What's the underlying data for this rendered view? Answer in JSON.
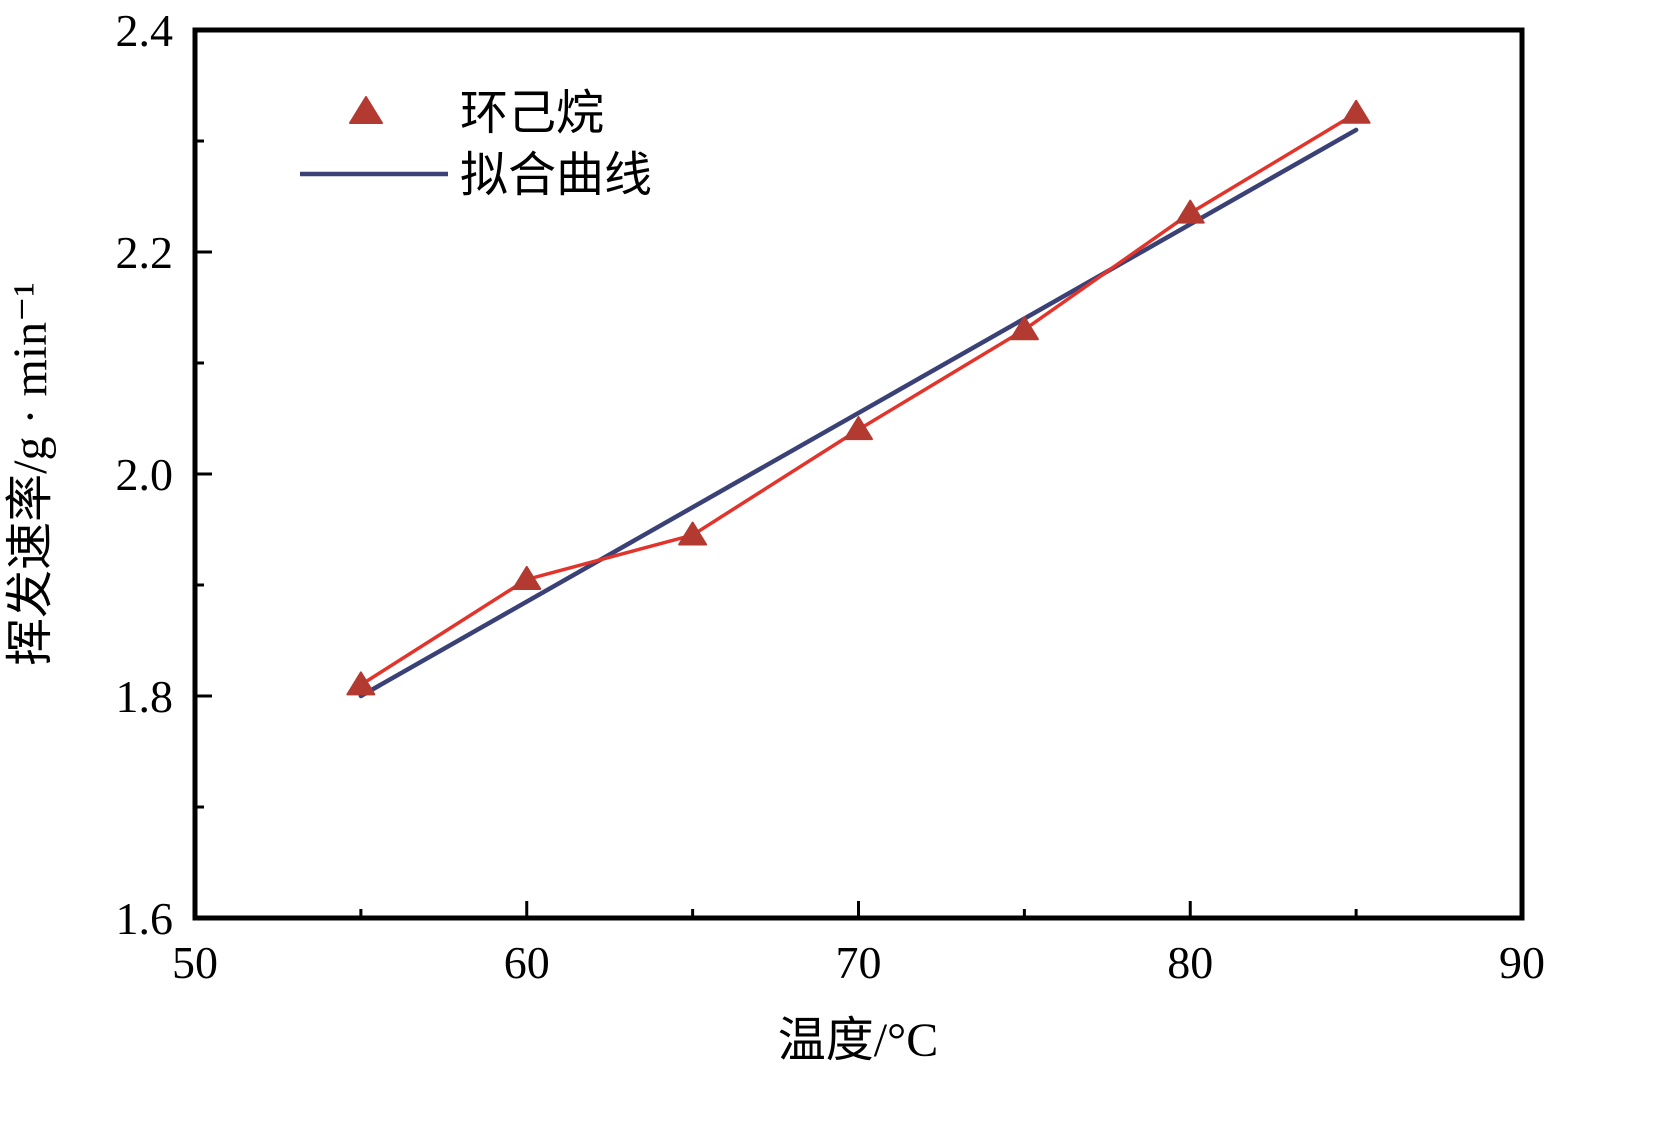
{
  "chart_data": {
    "type": "line",
    "title": "",
    "xlabel": "温度/°C",
    "ylabel": "挥发速率/g · min⁻¹",
    "xlim": [
      50,
      90
    ],
    "ylim": [
      1.6,
      2.4
    ],
    "xticks": [
      50,
      60,
      70,
      80,
      90
    ],
    "yticks": [
      1.6,
      1.8,
      2.0,
      2.2,
      2.4
    ],
    "grid": false,
    "legend_position": "top-left",
    "series": [
      {
        "name": "环己烷",
        "type": "scatter+line",
        "marker": "triangle",
        "color": "#e2342b",
        "marker_color": "#b23a31",
        "x": [
          55,
          60,
          65,
          70,
          75,
          80,
          85
        ],
        "y": [
          1.81,
          1.905,
          1.945,
          2.04,
          2.13,
          2.235,
          2.325
        ]
      },
      {
        "name": "拟合曲线",
        "type": "line",
        "marker": "none",
        "color": "#3a4176",
        "x": [
          55,
          85
        ],
        "y": [
          1.8,
          2.31
        ]
      }
    ]
  },
  "colors": {
    "background": "#ffffff",
    "axis": "#000000"
  }
}
